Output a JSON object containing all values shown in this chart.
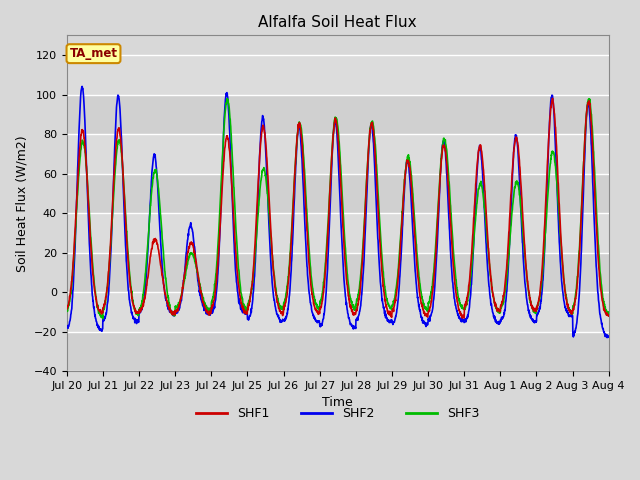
{
  "title": "Alfalfa Soil Heat Flux",
  "xlabel": "Time",
  "ylabel": "Soil Heat Flux (W/m2)",
  "ylim": [
    -40,
    130
  ],
  "yticks": [
    -40,
    -20,
    0,
    20,
    40,
    60,
    80,
    100,
    120
  ],
  "fig_bg": "#d8d8d8",
  "axes_bg": "#d8d8d8",
  "tag_label": "TA_met",
  "tag_bg": "#ffffa0",
  "tag_border": "#cc8800",
  "tag_text_color": "#8b0000",
  "series": [
    "SHF1",
    "SHF2",
    "SHF3"
  ],
  "colors": [
    "#cc0000",
    "#0000ee",
    "#00bb00"
  ],
  "linewidths": [
    1.2,
    1.2,
    1.2
  ],
  "n_days": 15,
  "ppd": 144,
  "shf2_peaks": [
    110,
    104,
    73,
    37,
    104,
    93,
    88,
    92,
    89,
    71,
    81,
    78,
    84,
    103,
    102
  ],
  "shf2_troughs": [
    -32,
    -25,
    -18,
    -18,
    -18,
    -24,
    -25,
    -30,
    -25,
    -27,
    -24,
    -26,
    -25,
    -20,
    -37
  ],
  "shf1_peaks": [
    85,
    86,
    30,
    28,
    82,
    87,
    88,
    90,
    89,
    70,
    78,
    77,
    81,
    100,
    100
  ],
  "shf1_troughs": [
    -18,
    -18,
    -18,
    -18,
    -18,
    -18,
    -18,
    -19,
    -20,
    -20,
    -21,
    -16,
    -16,
    -18,
    -20
  ],
  "shf3_peaks": [
    80,
    80,
    65,
    22,
    100,
    65,
    88,
    91,
    89,
    71,
    80,
    58,
    59,
    74,
    101
  ],
  "shf3_troughs": [
    -22,
    -20,
    -20,
    -15,
    -16,
    -15,
    -15,
    -15,
    -15,
    -16,
    -15,
    -18,
    -18,
    -18,
    -19
  ],
  "tick_labels": [
    "Jul 20",
    "Jul 21",
    "Jul 22",
    "Jul 23",
    "Jul 24",
    "Jul 25",
    "Jul 26",
    "Jul 27",
    "Jul 28",
    "Jul 29",
    "Jul 30",
    "Jul 31",
    "Aug 1",
    "Aug 2",
    "Aug 3",
    "Aug 4"
  ],
  "grid_colors": [
    "#cccccc",
    "#e0e0e0"
  ]
}
